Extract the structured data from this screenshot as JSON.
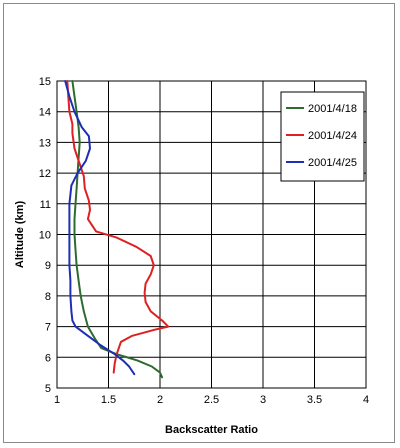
{
  "chart_data": {
    "type": "line",
    "title": "",
    "xlabel": "Backscatter Ratio",
    "ylabel": "Altitude (km)",
    "xlim": [
      1,
      4
    ],
    "ylim": [
      5,
      15
    ],
    "x_ticks": [
      "1",
      "1.5",
      "2",
      "2.5",
      "3",
      "3.5",
      "4"
    ],
    "y_ticks": [
      "5",
      "6",
      "7",
      "8",
      "9",
      "10",
      "11",
      "12",
      "13",
      "14",
      "15"
    ],
    "grid": true,
    "legend_position": "top-right",
    "series": [
      {
        "name": "2001/4/18",
        "color": "#2e6b2e",
        "points": [
          [
            1.15,
            15.0
          ],
          [
            1.17,
            14.5
          ],
          [
            1.19,
            14.0
          ],
          [
            1.21,
            13.5
          ],
          [
            1.22,
            13.0
          ],
          [
            1.21,
            12.5
          ],
          [
            1.2,
            12.0
          ],
          [
            1.19,
            11.5
          ],
          [
            1.18,
            11.0
          ],
          [
            1.17,
            10.5
          ],
          [
            1.17,
            10.0
          ],
          [
            1.18,
            9.5
          ],
          [
            1.19,
            9.0
          ],
          [
            1.21,
            8.5
          ],
          [
            1.23,
            8.0
          ],
          [
            1.26,
            7.5
          ],
          [
            1.3,
            7.0
          ],
          [
            1.37,
            6.6
          ],
          [
            1.43,
            6.3
          ],
          [
            1.58,
            6.1
          ],
          [
            1.78,
            5.9
          ],
          [
            1.92,
            5.7
          ],
          [
            2.0,
            5.5
          ],
          [
            2.02,
            5.35
          ]
        ]
      },
      {
        "name": "2001/4/24",
        "color": "#e02020",
        "points": [
          [
            1.1,
            15.0
          ],
          [
            1.11,
            14.5
          ],
          [
            1.12,
            14.0
          ],
          [
            1.15,
            13.6
          ],
          [
            1.15,
            13.3
          ],
          [
            1.17,
            12.8
          ],
          [
            1.22,
            12.3
          ],
          [
            1.26,
            11.9
          ],
          [
            1.27,
            11.5
          ],
          [
            1.31,
            11.1
          ],
          [
            1.32,
            10.8
          ],
          [
            1.3,
            10.5
          ],
          [
            1.38,
            10.1
          ],
          [
            1.58,
            9.9
          ],
          [
            1.77,
            9.6
          ],
          [
            1.91,
            9.3
          ],
          [
            1.94,
            9.0
          ],
          [
            1.91,
            8.7
          ],
          [
            1.86,
            8.4
          ],
          [
            1.85,
            8.1
          ],
          [
            1.86,
            7.8
          ],
          [
            1.91,
            7.5
          ],
          [
            2.02,
            7.2
          ],
          [
            2.08,
            7.0
          ],
          [
            1.95,
            6.9
          ],
          [
            1.73,
            6.7
          ],
          [
            1.62,
            6.5
          ],
          [
            1.58,
            6.1
          ],
          [
            1.56,
            5.8
          ],
          [
            1.55,
            5.5
          ]
        ]
      },
      {
        "name": "2001/4/25",
        "color": "#1f2fb5",
        "points": [
          [
            1.08,
            15.0
          ],
          [
            1.12,
            14.5
          ],
          [
            1.17,
            14.0
          ],
          [
            1.24,
            13.5
          ],
          [
            1.31,
            13.2
          ],
          [
            1.32,
            12.8
          ],
          [
            1.28,
            12.4
          ],
          [
            1.2,
            12.0
          ],
          [
            1.14,
            11.6
          ],
          [
            1.13,
            11.3
          ],
          [
            1.12,
            11.0
          ],
          [
            1.12,
            10.5
          ],
          [
            1.12,
            10.0
          ],
          [
            1.12,
            9.5
          ],
          [
            1.12,
            9.0
          ],
          [
            1.13,
            8.5
          ],
          [
            1.13,
            8.0
          ],
          [
            1.14,
            7.5
          ],
          [
            1.15,
            7.2
          ],
          [
            1.18,
            7.0
          ],
          [
            1.3,
            6.7
          ],
          [
            1.42,
            6.4
          ],
          [
            1.56,
            6.1
          ],
          [
            1.64,
            5.9
          ],
          [
            1.7,
            5.7
          ],
          [
            1.75,
            5.45
          ]
        ]
      }
    ]
  }
}
